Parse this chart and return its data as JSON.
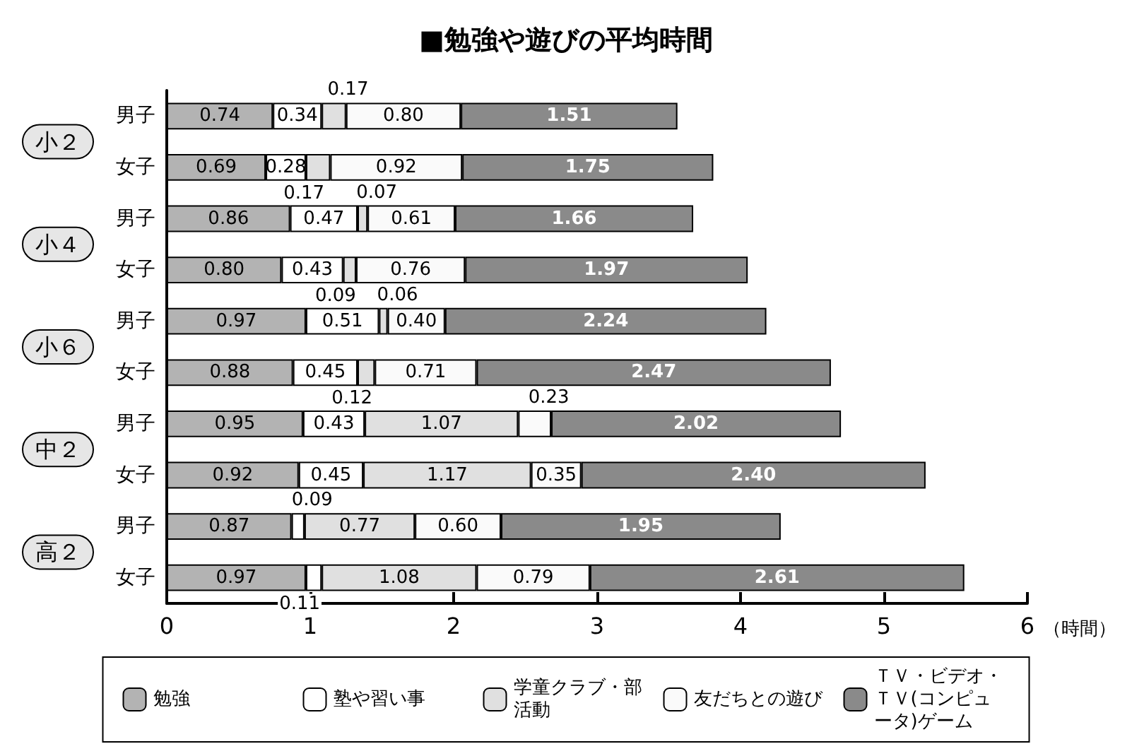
{
  "chart_data": {
    "type": "bar",
    "orientation": "horizontal",
    "stacked": true,
    "title": "■勉強や遊びの平均時間",
    "xlabel": "（時間）",
    "categories": [
      "男子",
      "女子",
      "男子",
      "女子",
      "男子",
      "女子",
      "男子",
      "女子",
      "男子",
      "女子"
    ],
    "annotations": [
      "小２",
      "小４",
      "小６",
      "中２",
      "高２"
    ],
    "series": [
      {
        "name": "勉強",
        "color": "#b3b3b3",
        "values": [
          0.74,
          0.69,
          0.86,
          0.8,
          0.97,
          0.88,
          0.95,
          0.92,
          0.87,
          0.97
        ],
        "value_labels": [
          "0.74",
          "0.69",
          "0.86",
          "0.80",
          "0.97",
          "0.88",
          "0.95",
          "0.92",
          "0.87",
          "0.97"
        ]
      },
      {
        "name": "塾や習い事",
        "color": "#ffffff",
        "values": [
          0.34,
          0.28,
          0.47,
          0.43,
          0.51,
          0.45,
          0.43,
          0.45,
          0.09,
          0.11
        ],
        "value_labels": [
          "0.34",
          "0.28",
          "0.47",
          "0.43",
          "0.51",
          "0.45",
          "0.43",
          "0.45",
          "0.09",
          "0.11"
        ]
      },
      {
        "name": "学童クラブ・部活動",
        "color": "#e0e0e0",
        "values": [
          0.17,
          0.17,
          0.07,
          0.09,
          0.06,
          0.12,
          1.07,
          1.17,
          0.77,
          1.08
        ],
        "value_labels": [
          "0.17",
          "0.17",
          "0.07",
          "0.09",
          "0.06",
          "0.12",
          "1.07",
          "1.17",
          "0.77",
          "1.08"
        ]
      },
      {
        "name": "友だちとの遊び",
        "color": "#fafafa",
        "values": [
          0.8,
          0.92,
          0.61,
          0.76,
          0.4,
          0.71,
          0.23,
          0.35,
          0.6,
          0.79
        ],
        "value_labels": [
          "0.80",
          "0.92",
          "0.61",
          "0.76",
          "0.40",
          "0.71",
          "0.23",
          "0.35",
          "0.60",
          "0.79"
        ]
      },
      {
        "name": "ＴＶ・ビデオ・ＴＶ(コンピュータ)ゲーム",
        "color": "#8a8a8a",
        "values": [
          1.51,
          1.75,
          1.66,
          1.97,
          2.24,
          2.47,
          2.02,
          2.4,
          1.95,
          2.61
        ],
        "value_labels": [
          "1.51",
          "1.75",
          "1.66",
          "1.97",
          "2.24",
          "2.47",
          "2.02",
          "2.40",
          "1.95",
          "2.61"
        ]
      }
    ],
    "xlim": [
      0,
      6
    ],
    "xticks": [
      0,
      1,
      2,
      3,
      4,
      5,
      6
    ],
    "grid": false,
    "legend": "bottom"
  }
}
